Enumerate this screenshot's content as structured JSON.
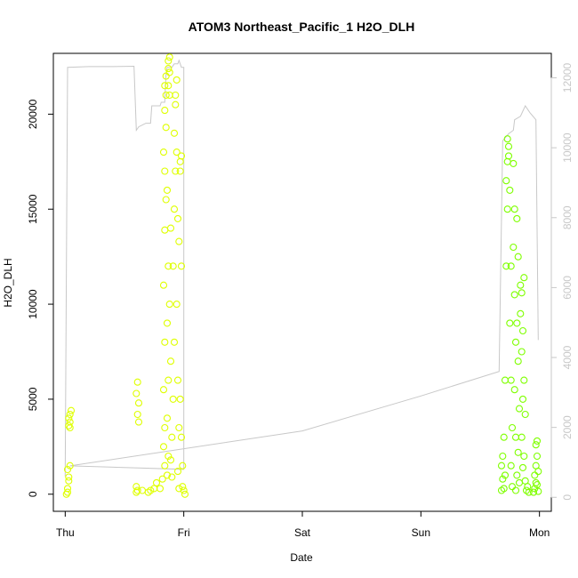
{
  "chart_data": {
    "type": "scatter",
    "title": "ATOM3 Northeast_Pacific_1 H2O_DLH",
    "xlabel": "Date",
    "ylabel": "H2O_DLH",
    "x_ticks": [
      "Thu",
      "Fri",
      "Sat",
      "Sun",
      "Mon"
    ],
    "x_range_days": [
      -0.1,
      4.1
    ],
    "ylim": [
      -900,
      23200
    ],
    "y_ticks": [
      0,
      5000,
      10000,
      15000,
      20000
    ],
    "y2lim": [
      -400,
      12700
    ],
    "y2_ticks": [
      0,
      2000,
      4000,
      6000,
      8000,
      10000,
      12000
    ],
    "grid": false,
    "marker": "open-circle",
    "color_early": "#dfff00",
    "color_late": "#7fff00",
    "line_color": "#c8c8c8",
    "series": [
      {
        "values": [
          [
            0.01,
            0
          ],
          [
            0.02,
            100
          ],
          [
            0.02,
            300
          ],
          [
            0.03,
            700
          ],
          [
            0.03,
            900
          ],
          [
            0.02,
            1300
          ],
          [
            0.04,
            1500
          ],
          [
            0.03,
            3600
          ],
          [
            0.04,
            3800
          ],
          [
            0.03,
            4000
          ],
          [
            0.04,
            4200
          ],
          [
            0.05,
            4400
          ],
          [
            0.04,
            3500
          ],
          [
            0.6,
            100
          ],
          [
            0.61,
            200
          ],
          [
            0.6,
            400
          ],
          [
            0.62,
            3800
          ],
          [
            0.61,
            4200
          ],
          [
            0.62,
            4800
          ],
          [
            0.6,
            5300
          ],
          [
            0.61,
            5900
          ],
          [
            0.65,
            200
          ],
          [
            0.7,
            100
          ],
          [
            0.75,
            300
          ],
          [
            0.72,
            200
          ],
          [
            0.77,
            600
          ],
          [
            0.8,
            300
          ],
          [
            0.82,
            800
          ],
          [
            0.84,
            1500
          ],
          [
            0.83,
            2500
          ],
          [
            0.84,
            3500
          ],
          [
            0.83,
            5500
          ],
          [
            0.84,
            8000
          ],
          [
            0.83,
            11000
          ],
          [
            0.84,
            13900
          ],
          [
            0.85,
            15500
          ],
          [
            0.84,
            17000
          ],
          [
            0.83,
            18000
          ],
          [
            0.85,
            19300
          ],
          [
            0.84,
            20200
          ],
          [
            0.85,
            21000
          ],
          [
            0.84,
            21500
          ],
          [
            0.85,
            22000
          ],
          [
            0.86,
            1000
          ],
          [
            0.87,
            2000
          ],
          [
            0.86,
            4000
          ],
          [
            0.87,
            6000
          ],
          [
            0.86,
            9000
          ],
          [
            0.87,
            12000
          ],
          [
            0.86,
            16000
          ],
          [
            0.87,
            21500
          ],
          [
            0.88,
            22200
          ],
          [
            0.87,
            22800
          ],
          [
            0.88,
            23000
          ],
          [
            0.87,
            22400
          ],
          [
            0.88,
            21000
          ],
          [
            0.89,
            14000
          ],
          [
            0.88,
            10000
          ],
          [
            0.89,
            7000
          ],
          [
            0.9,
            3000
          ],
          [
            0.89,
            1800
          ],
          [
            0.9,
            900
          ],
          [
            0.91,
            5000
          ],
          [
            0.92,
            8000
          ],
          [
            0.91,
            12000
          ],
          [
            0.92,
            15000
          ],
          [
            0.93,
            17000
          ],
          [
            0.92,
            19000
          ],
          [
            0.93,
            21000
          ],
          [
            0.94,
            21800
          ],
          [
            0.93,
            20500
          ],
          [
            0.94,
            18000
          ],
          [
            0.95,
            14500
          ],
          [
            0.94,
            10000
          ],
          [
            0.95,
            6000
          ],
          [
            0.96,
            3500
          ],
          [
            0.95,
            1200
          ],
          [
            0.96,
            300
          ],
          [
            0.97,
            5000
          ],
          [
            0.96,
            13300
          ],
          [
            0.97,
            17500
          ],
          [
            0.98,
            17800
          ],
          [
            0.97,
            17000
          ],
          [
            0.98,
            12000
          ],
          [
            0.99,
            400
          ],
          [
            1.0,
            200
          ],
          [
            1.01,
            0
          ],
          [
            0.98,
            3000
          ],
          [
            0.99,
            1500
          ]
        ]
      },
      {
        "values": [
          [
            3.68,
            200
          ],
          [
            3.69,
            800
          ],
          [
            3.68,
            1500
          ],
          [
            3.69,
            2000
          ],
          [
            3.7,
            300
          ],
          [
            3.71,
            1000
          ],
          [
            3.7,
            3000
          ],
          [
            3.71,
            6000
          ],
          [
            3.72,
            12000
          ],
          [
            3.73,
            15000
          ],
          [
            3.72,
            16500
          ],
          [
            3.73,
            17500
          ],
          [
            3.74,
            18300
          ],
          [
            3.73,
            18700
          ],
          [
            3.74,
            17800
          ],
          [
            3.75,
            16000
          ],
          [
            3.76,
            12000
          ],
          [
            3.75,
            9000
          ],
          [
            3.76,
            6000
          ],
          [
            3.77,
            3500
          ],
          [
            3.76,
            1500
          ],
          [
            3.77,
            400
          ],
          [
            3.78,
            17400
          ],
          [
            3.79,
            15000
          ],
          [
            3.78,
            13000
          ],
          [
            3.79,
            10500
          ],
          [
            3.8,
            8000
          ],
          [
            3.79,
            5500
          ],
          [
            3.8,
            3000
          ],
          [
            3.81,
            1000
          ],
          [
            3.8,
            200
          ],
          [
            3.81,
            14500
          ],
          [
            3.82,
            12500
          ],
          [
            3.81,
            9000
          ],
          [
            3.82,
            7000
          ],
          [
            3.83,
            4500
          ],
          [
            3.82,
            2200
          ],
          [
            3.83,
            600
          ],
          [
            3.84,
            11000
          ],
          [
            3.85,
            10600
          ],
          [
            3.84,
            9500
          ],
          [
            3.85,
            7500
          ],
          [
            3.86,
            5000
          ],
          [
            3.85,
            3000
          ],
          [
            3.86,
            1400
          ],
          [
            3.87,
            11400
          ],
          [
            3.86,
            8600
          ],
          [
            3.87,
            6000
          ],
          [
            3.88,
            4200
          ],
          [
            3.87,
            2000
          ],
          [
            3.88,
            700
          ],
          [
            3.89,
            200
          ],
          [
            3.9,
            400
          ],
          [
            3.91,
            100
          ],
          [
            3.95,
            100
          ],
          [
            3.96,
            300
          ],
          [
            3.97,
            600
          ],
          [
            3.96,
            1000
          ],
          [
            3.97,
            1500
          ],
          [
            3.98,
            2000
          ],
          [
            3.97,
            2600
          ],
          [
            3.98,
            2800
          ],
          [
            3.99,
            1200
          ],
          [
            3.98,
            500
          ],
          [
            3.99,
            150
          ]
        ]
      }
    ],
    "right_axis_line": [
      [
        0.0,
        600
      ],
      [
        0.02,
        12300
      ],
      [
        0.2,
        12320
      ],
      [
        0.4,
        12320
      ],
      [
        0.58,
        12330
      ],
      [
        0.6,
        10500
      ],
      [
        0.62,
        10600
      ],
      [
        0.68,
        10700
      ],
      [
        0.72,
        10700
      ],
      [
        0.73,
        11200
      ],
      [
        0.8,
        11200
      ],
      [
        0.81,
        11300
      ],
      [
        0.84,
        11300
      ],
      [
        0.85,
        12100
      ],
      [
        0.86,
        12300
      ],
      [
        0.9,
        12300
      ],
      [
        0.92,
        12400
      ],
      [
        0.95,
        12400
      ],
      [
        0.96,
        12500
      ],
      [
        0.98,
        12300
      ],
      [
        1.0,
        12300
      ],
      [
        1.0,
        800
      ],
      [
        0.04,
        900
      ],
      [
        2.0,
        1900
      ],
      [
        3.0,
        2900
      ],
      [
        3.66,
        3600
      ],
      [
        3.69,
        10200
      ],
      [
        3.74,
        10400
      ],
      [
        3.78,
        10500
      ],
      [
        3.79,
        10800
      ],
      [
        3.84,
        10900
      ],
      [
        3.88,
        11200
      ],
      [
        3.92,
        11000
      ],
      [
        3.97,
        10800
      ],
      [
        3.99,
        4500
      ]
    ]
  }
}
